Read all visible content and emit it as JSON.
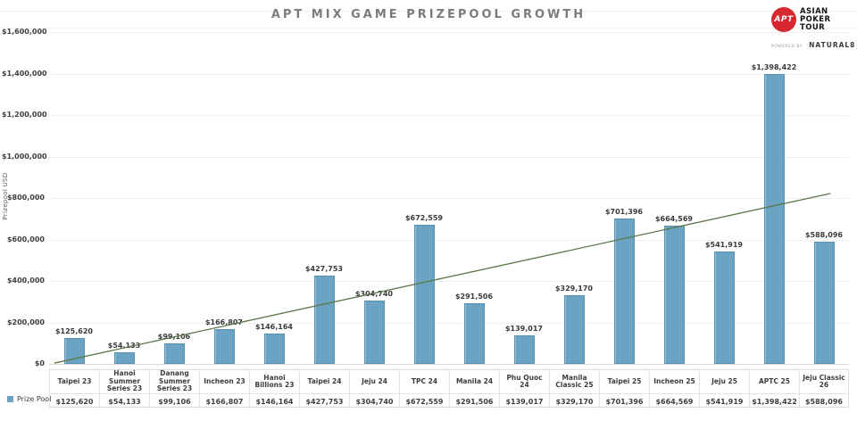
{
  "header": {
    "title": "APT MIX GAME PRIZEPOOL GROWTH"
  },
  "logo": {
    "badge": "APT",
    "brand": [
      "ASIAN",
      "POKER",
      "TOUR"
    ],
    "powered_by": "POWERED BY",
    "partner": "NATURAL8"
  },
  "chart_data": {
    "type": "bar",
    "title": "APT MIX GAME PRIZEPOOL GROWTH",
    "xlabel": "",
    "ylabel": "Prizepool USD",
    "ylim": [
      0,
      1600000
    ],
    "grid": true,
    "legend_position": "bottom-left",
    "ytick_values": [
      0,
      200000,
      400000,
      600000,
      800000,
      1000000,
      1200000,
      1400000,
      1600000
    ],
    "ytick_labels": [
      "$0",
      "$200,000",
      "$400,000",
      "$600,000",
      "$800,000",
      "$1,000,000",
      "$1,200,000",
      "$1,400,000",
      "$1,600,000"
    ],
    "categories": [
      "Taipei 23",
      "Hanoi Summer Series 23",
      "Danang Summer Series 23",
      "Incheon 23",
      "Hanoi Billions 23",
      "Taipei 24",
      "Jeju 24",
      "TPC 24",
      "Manila 24",
      "Phu Quoc 24",
      "Manila Classic 25",
      "Taipei 25",
      "Incheon 25",
      "Jeju 25",
      "APTC 25",
      "Jeju Classic 26"
    ],
    "series": [
      {
        "name": "Prize Pool",
        "values": [
          125620,
          54133,
          99106,
          166807,
          146164,
          427753,
          304740,
          672559,
          291506,
          139017,
          329170,
          701396,
          664569,
          541919,
          1398422,
          588096
        ]
      }
    ],
    "value_labels": [
      "$125,620",
      "$54,133",
      "$99,106",
      "$166,807",
      "$146,164",
      "$427,753",
      "$304,740",
      "$672,559",
      "$291,506",
      "$139,017",
      "$329,170",
      "$701,396",
      "$664,569",
      "$541,919",
      "$1,398,422",
      "$588,096"
    ],
    "trendline": {
      "start_value": 4000,
      "end_value": 822000
    },
    "colors": {
      "bar": "#6BA3C4",
      "bar_border": "#5890B0",
      "trendline": "#5E7747",
      "grid": "#efefef",
      "title": "#7c7c7c",
      "text": "#3d3d3d",
      "logo_red": "#D7282F"
    }
  }
}
